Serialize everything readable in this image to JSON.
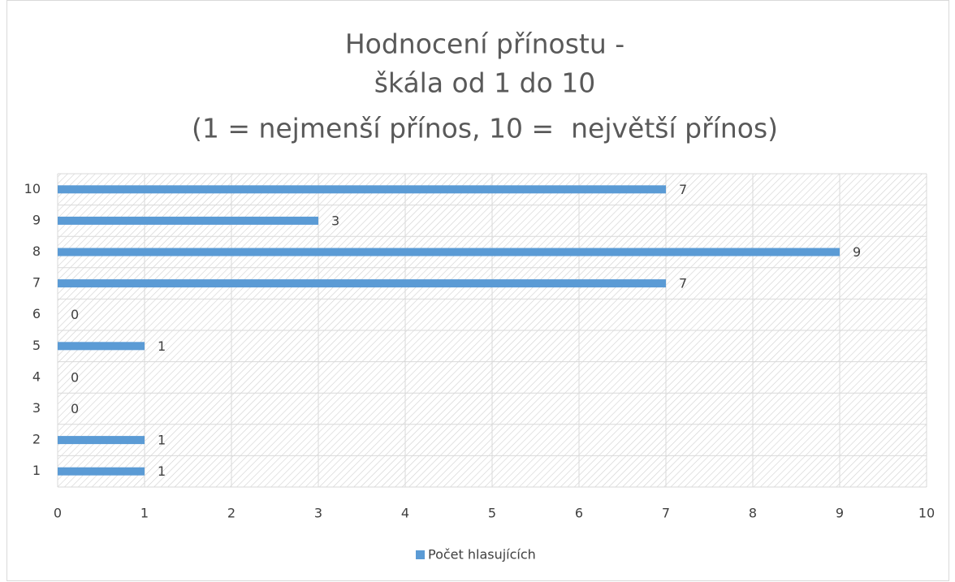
{
  "chart_data": {
    "type": "barh",
    "title": [
      "Hodnocení přínostu -",
      "škála od 1 do 10",
      "(1 = nejmenší přínos, 10 =  největší přínos)"
    ],
    "categories": [
      "1",
      "2",
      "3",
      "4",
      "5",
      "6",
      "7",
      "8",
      "9",
      "10"
    ],
    "series": [
      {
        "name": "Počet hlasujících",
        "color": "#5b9bd5",
        "values": [
          1,
          1,
          0,
          0,
          1,
          0,
          7,
          9,
          3,
          7
        ]
      }
    ],
    "xlim": [
      0,
      10
    ],
    "xticks": [
      0,
      1,
      2,
      3,
      4,
      5,
      6,
      7,
      8,
      9,
      10
    ],
    "grid": true,
    "legend": "bottom"
  }
}
